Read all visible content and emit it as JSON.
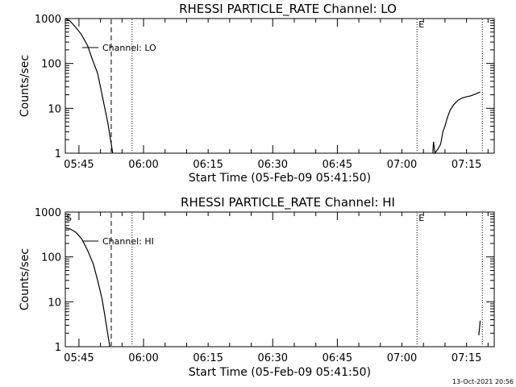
{
  "footer": {
    "timestamp": "13-Oct-2021 20:56"
  },
  "chart_data": [
    {
      "type": "line",
      "title": "RHESSI PARTICLE_RATE Channel: LO",
      "xlabel": "Start Time (05-Feb-09 05:41:50)",
      "ylabel": "Counts/sec",
      "yscale": "log",
      "ylim": [
        1,
        1000
      ],
      "xlim_minutes": [
        0,
        99.6
      ],
      "x_tick_labels": [
        "05:45",
        "06:00",
        "06:15",
        "06:30",
        "06:45",
        "07:00",
        "07:15"
      ],
      "y_tick_labels": [
        "1",
        "10",
        "100",
        "1000"
      ],
      "legend": "Channel: LO",
      "annotation": "E",
      "vlines": [
        {
          "time": "05:52:30",
          "style": "dashed"
        },
        {
          "time": "05:57:20",
          "style": "dotted"
        },
        {
          "time": "07:03:30",
          "style": "dotted"
        },
        {
          "time": "07:18:40",
          "style": "dotted"
        }
      ],
      "series": [
        {
          "name": "Channel: LO",
          "segments": [
            [
              [
                "05:41:50",
                1000
              ],
              [
                "05:42:50",
                900
              ],
              [
                "05:44:10",
                650
              ],
              [
                "05:45:30",
                450
              ],
              [
                "05:47:00",
                250
              ],
              [
                "05:48:10",
                120
              ],
              [
                "05:49:20",
                60
              ],
              [
                "05:50:10",
                25
              ],
              [
                "05:51:00",
                10
              ],
              [
                "05:51:40",
                5
              ],
              [
                "05:52:20",
                2
              ],
              [
                "05:52:50",
                1
              ]
            ],
            [
              [
                "07:07:10",
                1
              ],
              [
                "07:07:20",
                1.8
              ],
              [
                "07:07:40",
                1
              ],
              [
                "07:08:30",
                1.3
              ],
              [
                "07:09:00",
                1.6
              ],
              [
                "07:09:30",
                3
              ],
              [
                "07:10:00",
                4
              ],
              [
                "07:10:30",
                6
              ],
              [
                "07:11:10",
                9
              ],
              [
                "07:12:00",
                12
              ],
              [
                "07:13:00",
                15
              ],
              [
                "07:14:00",
                17
              ],
              [
                "07:15:00",
                18
              ],
              [
                "07:16:00",
                19
              ],
              [
                "07:17:10",
                21
              ],
              [
                "07:18:10",
                23
              ]
            ]
          ]
        }
      ]
    },
    {
      "type": "line",
      "title": "RHESSI PARTICLE_RATE Channel: HI",
      "xlabel": "Start Time (05-Feb-09 05:41:50)",
      "ylabel": "Counts/sec",
      "yscale": "log",
      "ylim": [
        1,
        1000
      ],
      "xlim_minutes": [
        0,
        99.6
      ],
      "x_tick_labels": [
        "05:45",
        "06:00",
        "06:15",
        "06:30",
        "06:45",
        "07:00",
        "07:15"
      ],
      "y_tick_labels": [
        "1",
        "10",
        "100",
        "1000"
      ],
      "legend": "Channel: HI",
      "annotation_left": "S",
      "annotation": "E",
      "vlines": [
        {
          "time": "05:52:30",
          "style": "dashed"
        },
        {
          "time": "05:57:20",
          "style": "dotted"
        },
        {
          "time": "07:03:30",
          "style": "dotted"
        },
        {
          "time": "07:18:40",
          "style": "dotted"
        }
      ],
      "series": [
        {
          "name": "Channel: HI",
          "segments": [
            [
              [
                "05:41:50",
                450
              ],
              [
                "05:43:00",
                420
              ],
              [
                "05:44:20",
                350
              ],
              [
                "05:45:40",
                250
              ],
              [
                "05:47:00",
                140
              ],
              [
                "05:48:20",
                70
              ],
              [
                "05:49:20",
                30
              ],
              [
                "05:50:20",
                12
              ],
              [
                "05:51:00",
                5
              ],
              [
                "05:51:40",
                2
              ],
              [
                "05:52:10",
                1
              ]
            ],
            [
              [
                "07:17:50",
                1.8
              ],
              [
                "07:18:00",
                2.5
              ],
              [
                "07:18:10",
                3.8
              ]
            ]
          ]
        }
      ]
    }
  ]
}
